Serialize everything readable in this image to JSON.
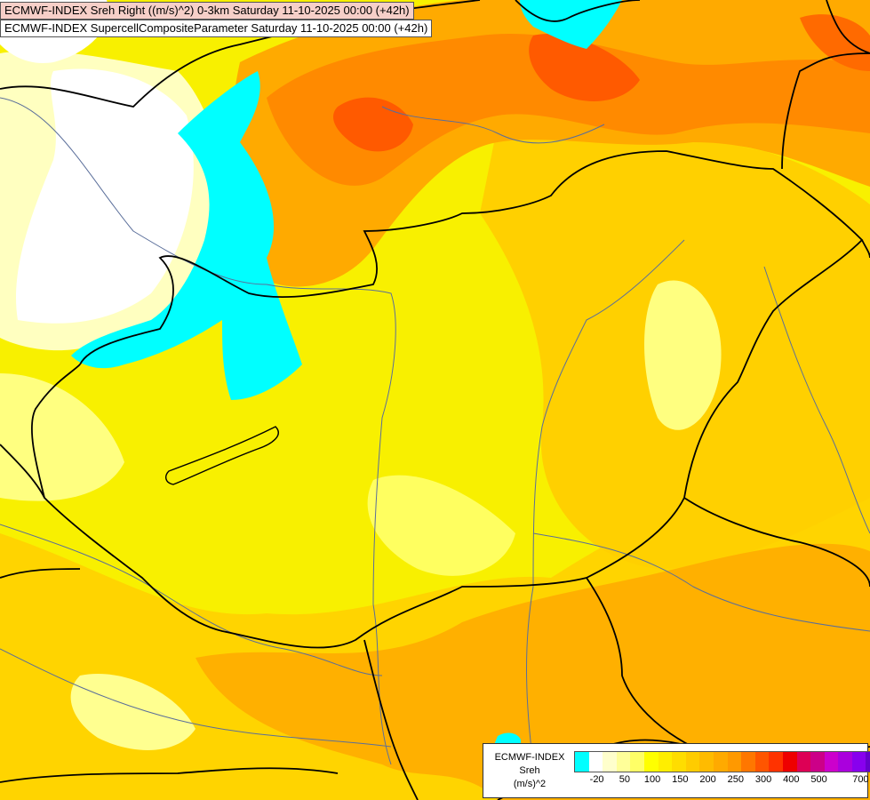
{
  "titles": {
    "line1": "ECMWF-INDEX Sreh Right ((m/s)^2) 0-3km Saturday 11-10-2025 00:00 (+42h)",
    "line2": "ECMWF-INDEX SupercellCompositeParameter Saturday 11-10-2025 00:00 (+42h)"
  },
  "legend": {
    "line1": "ECMWF-INDEX",
    "line2": "Sreh",
    "line3": "(m/s)^2",
    "colors": [
      "#00ffff",
      "#ffffff",
      "#ffffcc",
      "#ffff99",
      "#ffff66",
      "#ffff00",
      "#ffee00",
      "#ffdd00",
      "#ffcc00",
      "#ffbb00",
      "#ffaa00",
      "#ff9900",
      "#ff7700",
      "#ff5500",
      "#ff3300",
      "#ee0000",
      "#dd0055",
      "#cc0088",
      "#cc00cc",
      "#aa00dd",
      "#8800ee",
      "#6600cc",
      "#3300aa",
      "#000088"
    ],
    "ticks": [
      "-20",
      "50",
      "100",
      "150",
      "200",
      "250",
      "300",
      "400",
      "500",
      "700"
    ]
  },
  "colors": {
    "cyan": "#00ffff",
    "white": "#ffffff",
    "pale_yellow": "#ffffa0",
    "yellow": "#ffff00",
    "gold": "#ffd000",
    "orange": "#ffaa00",
    "dark_orange": "#ff7700",
    "red_orange": "#ff4400",
    "border": "#000000",
    "river": "#5a6e9a"
  }
}
